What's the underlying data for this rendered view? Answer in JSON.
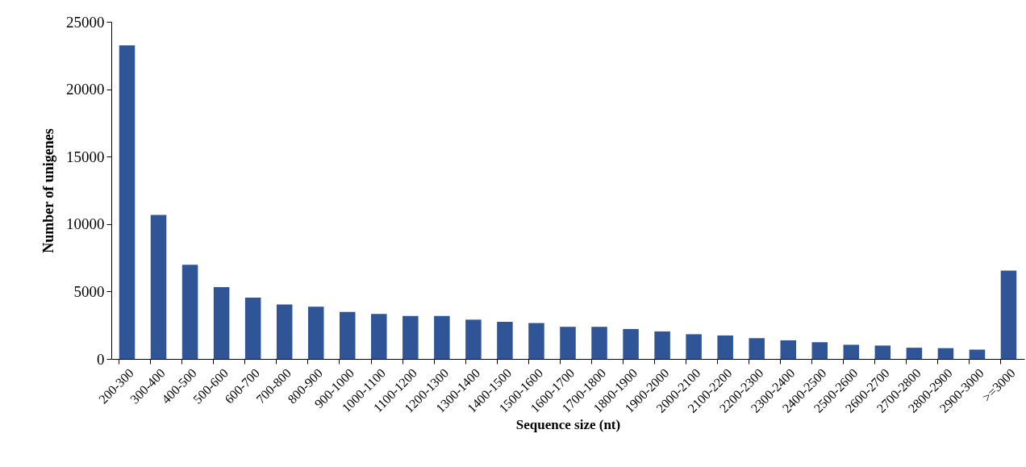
{
  "chart_data": {
    "type": "bar",
    "xlabel": "Sequence size (nt)",
    "ylabel": "Number of  unigenes",
    "categories": [
      "200-300",
      "300-400",
      "400-500",
      "500-600",
      "600-700",
      "700-800",
      "800-900",
      "900-1000",
      "1000-1100",
      "1100-1200",
      "1200-1300",
      "1300-1400",
      "1400-1500",
      "1500-1600",
      "1600-1700",
      "1700-1800",
      "1800-1900",
      "1900-2000",
      "2000-2100",
      "2100-2200",
      "2200-2300",
      "2300-2400",
      "2400-2500",
      "2500-2600",
      "2600-2700",
      "2700-2800",
      "2800-2900",
      "2900-3000",
      ">=3000"
    ],
    "values": [
      23250,
      10680,
      6990,
      5320,
      4540,
      4040,
      3870,
      3490,
      3330,
      3190,
      3190,
      2910,
      2750,
      2660,
      2380,
      2380,
      2220,
      2040,
      1830,
      1740,
      1540,
      1380,
      1240,
      1050,
      990,
      830,
      800,
      690,
      6550
    ],
    "color": "#2f5597",
    "ylim": [
      0,
      25000
    ],
    "yticks": [
      0,
      5000,
      10000,
      15000,
      20000,
      25000
    ],
    "grid": false
  }
}
